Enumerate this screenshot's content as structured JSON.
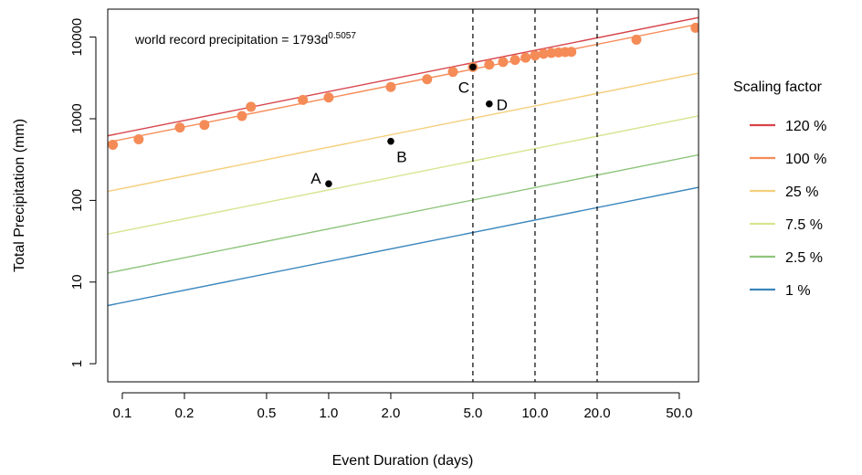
{
  "chart_data": {
    "type": "line",
    "title": "",
    "xlabel": "Event Duration (days)",
    "ylabel": "Total Precipitation (mm)",
    "x_scale": "log",
    "y_scale": "log",
    "xlim": [
      0.085,
      62
    ],
    "ylim": [
      0.6,
      22000
    ],
    "x_ticks": [
      0.1,
      0.2,
      0.5,
      1.0,
      2.0,
      5.0,
      10.0,
      20.0,
      50.0
    ],
    "x_tick_labels": [
      "0.1",
      "0.2",
      "0.5",
      "1.0",
      "2.0",
      "5.0",
      "10.0",
      "20.0",
      "50.0"
    ],
    "y_ticks": [
      1,
      10,
      100,
      1000,
      10000
    ],
    "y_tick_labels": [
      "1",
      "10",
      "100",
      "1000",
      "10000"
    ],
    "annotation": {
      "text": "world record precipitation = 1793d",
      "exponent": "0.5057"
    },
    "formula": {
      "coefficient": 1793,
      "exponent": 0.5057
    },
    "vertical_lines_x": [
      5,
      10,
      20
    ],
    "legend_title": "Scaling factor",
    "legend_position": "right",
    "series": [
      {
        "name": "120 %",
        "factor": 1.2,
        "color": "#d7444b"
      },
      {
        "name": "100 %",
        "factor": 1.0,
        "color": "#f58b57"
      },
      {
        "name": "25 %",
        "factor": 0.25,
        "color": "#f4cf7c"
      },
      {
        "name": "7.5 %",
        "factor": 0.075,
        "color": "#d8e490"
      },
      {
        "name": "2.5 %",
        "factor": 0.025,
        "color": "#8fc57d"
      },
      {
        "name": "1 %",
        "factor": 0.01,
        "color": "#3a86bd"
      }
    ],
    "record_points": {
      "color": "#f58b57",
      "x": [
        0.09,
        0.12,
        0.19,
        0.25,
        0.38,
        0.42,
        0.75,
        1.0,
        2.0,
        3.0,
        4.0,
        5.0,
        6.0,
        7.0,
        8.0,
        9.0,
        10.0,
        11.0,
        12.0,
        13.0,
        14.0,
        15.0,
        31.0,
        60.0
      ],
      "y": [
        480,
        560,
        780,
        840,
        1080,
        1400,
        1700,
        1820,
        2450,
        3050,
        3750,
        4300,
        4600,
        4950,
        5250,
        5600,
        5950,
        6250,
        6400,
        6500,
        6550,
        6600,
        9300,
        13000
      ]
    },
    "labeled_points": [
      {
        "label": "A",
        "x": 1.0,
        "y": 160
      },
      {
        "label": "B",
        "x": 2.0,
        "y": 530
      },
      {
        "label": "C",
        "x": 5.0,
        "y": 4300
      },
      {
        "label": "D",
        "x": 6.0,
        "y": 1520
      }
    ]
  }
}
